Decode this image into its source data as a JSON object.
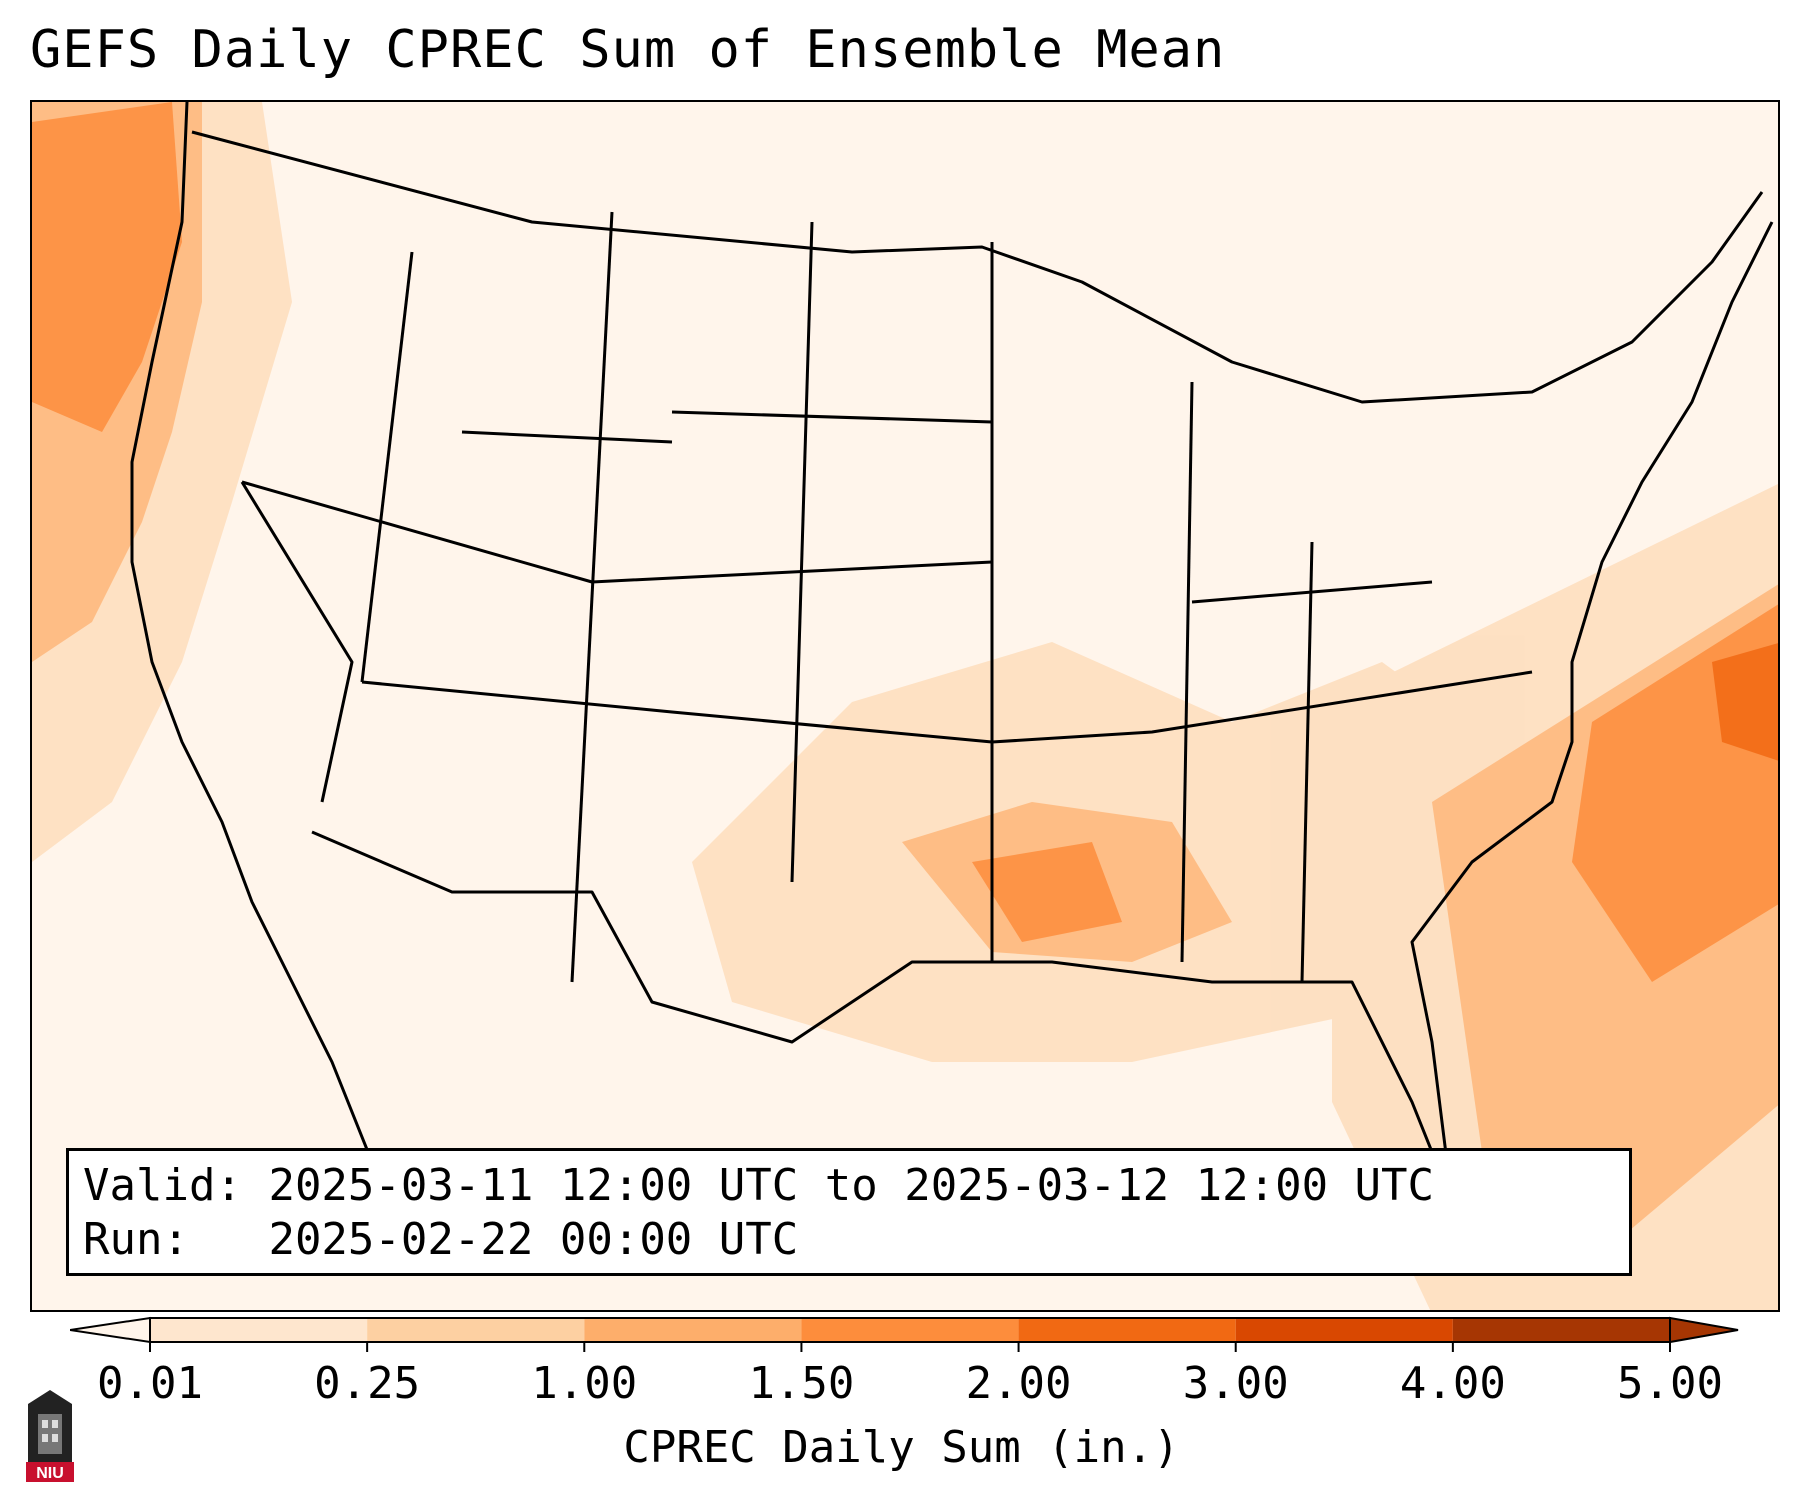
{
  "title": "GEFS Daily CPREC Sum of Ensemble Mean",
  "info": {
    "valid_label": "Valid:",
    "valid_text": "2025-03-11 12:00 UTC to 2025-03-12 12:00 UTC",
    "run_label": "Run:",
    "run_text": "2025-02-22 00:00 UTC"
  },
  "colorbar": {
    "label": "CPREC Daily Sum (in.)",
    "ticks": [
      "0.01",
      "0.25",
      "1.00",
      "1.50",
      "2.00",
      "3.00",
      "4.00",
      "5.00"
    ],
    "colors": [
      "#fff5eb",
      "#fee6ce",
      "#fdd0a2",
      "#fdae6b",
      "#fd8d3c",
      "#f16913",
      "#d94801",
      "#a63603"
    ],
    "extend": "both"
  },
  "logo": {
    "text": "NIU",
    "color": "#c8102e"
  },
  "map": {
    "region": "Contiguous United States",
    "shading_color_heavy": "#f16913",
    "shading_color_moderate": "#fd8d3c"
  }
}
